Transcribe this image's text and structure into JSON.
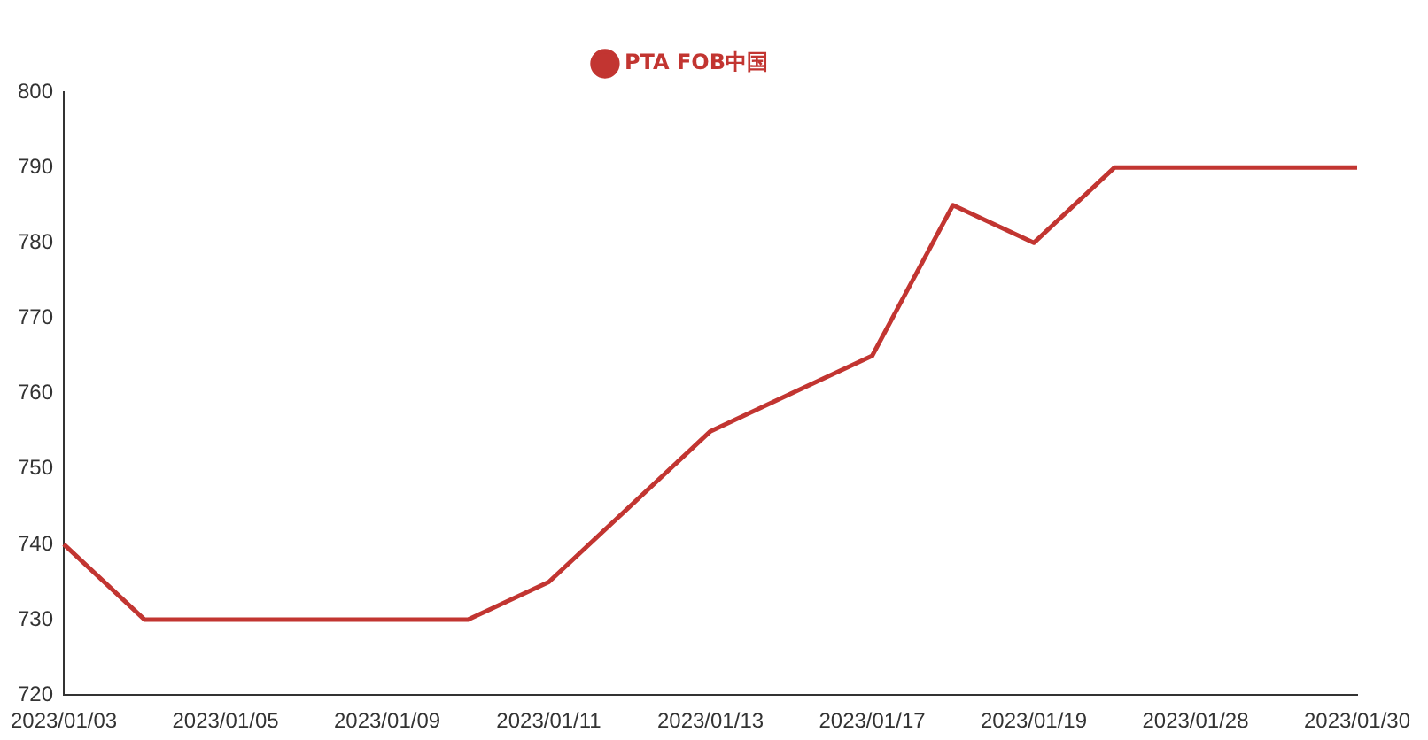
{
  "chart_data": {
    "type": "line",
    "categories": [
      "2023/01/03",
      null,
      "2023/01/05",
      null,
      "2023/01/09",
      null,
      "2023/01/11",
      null,
      "2023/01/13",
      null,
      "2023/01/17",
      null,
      "2023/01/19",
      null,
      "2023/01/28",
      null,
      "2023/01/30"
    ],
    "series": [
      {
        "name": "PTA FOB中国",
        "color": "#c23531",
        "values": [
          740,
          730,
          730,
          730,
          730,
          730,
          735,
          745,
          755,
          760,
          765,
          785,
          780,
          790,
          790,
          790,
          790
        ]
      }
    ],
    "ylim": [
      720,
      800
    ],
    "yticks": [
      720,
      730,
      740,
      750,
      760,
      770,
      780,
      790,
      800
    ],
    "grid": false,
    "legend": "top",
    "marker": "none",
    "line_style": "solid"
  }
}
